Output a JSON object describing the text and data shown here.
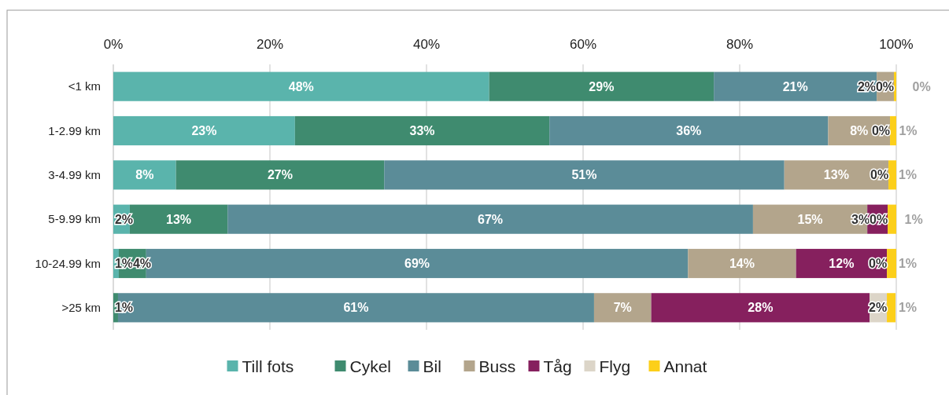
{
  "chart_data": {
    "type": "bar",
    "orientation": "horizontal",
    "stacked": true,
    "categories": [
      "<1 km",
      "1-2.99 km",
      "3-4.99 km",
      "5-9.99 km",
      "10-24.99 km",
      ">25 km"
    ],
    "xlim": [
      0,
      100
    ],
    "xticks": [
      {
        "value": 0,
        "label": "0%"
      },
      {
        "value": 20,
        "label": "20%"
      },
      {
        "value": 40,
        "label": "40%"
      },
      {
        "value": 60,
        "label": "60%"
      },
      {
        "value": 80,
        "label": "80%"
      },
      {
        "value": 100,
        "label": "100%"
      }
    ],
    "grid": "x",
    "legend": "bottom",
    "series": [
      {
        "name": "Till fots",
        "color": "#5ab4ac",
        "values": [
          48.0,
          23.2,
          8.0,
          2.1,
          0.7,
          0
        ],
        "value_labels": [
          "48%",
          "23%",
          "8%",
          "2%",
          "1%",
          null
        ]
      },
      {
        "name": "Cykel",
        "color": "#3f8b6f",
        "values": [
          28.7,
          32.5,
          26.6,
          12.5,
          3.5,
          0.6
        ],
        "value_labels": [
          "29%",
          "33%",
          "27%",
          "13%",
          "4%",
          "1%"
        ]
      },
      {
        "name": "Bil",
        "color": "#5b8c98",
        "values": [
          20.8,
          35.6,
          51.1,
          67.1,
          69.2,
          60.8
        ],
        "value_labels": [
          "21%",
          "36%",
          "51%",
          "67%",
          "69%",
          "61%"
        ]
      },
      {
        "name": "Buss",
        "color": "#b3a58c",
        "values": [
          2.2,
          7.9,
          13.3,
          14.6,
          13.8,
          7.3
        ],
        "value_labels": [
          "2%",
          "8%",
          "13%",
          "15%",
          "14%",
          "7%"
        ]
      },
      {
        "name": "Tåg",
        "color": "#86205e",
        "values": [
          0,
          0,
          0,
          2.6,
          11.6,
          27.9
        ],
        "value_labels": [
          null,
          null,
          null,
          "3%",
          "12%",
          "28%"
        ]
      },
      {
        "name": "Flyg",
        "color": "#dcd5c8",
        "values": [
          0,
          0,
          0,
          0,
          0,
          2.2
        ],
        "value_labels": [
          "0%",
          "0%",
          "0%",
          "0%",
          "0%",
          "2%"
        ]
      },
      {
        "name": "Annat",
        "color": "#fccf1a",
        "values": [
          0.3,
          0.8,
          1.0,
          1.1,
          1.2,
          1.1
        ],
        "value_labels": [
          "0%",
          "1%",
          "1%",
          "1%",
          "1%",
          "1%"
        ]
      }
    ]
  }
}
